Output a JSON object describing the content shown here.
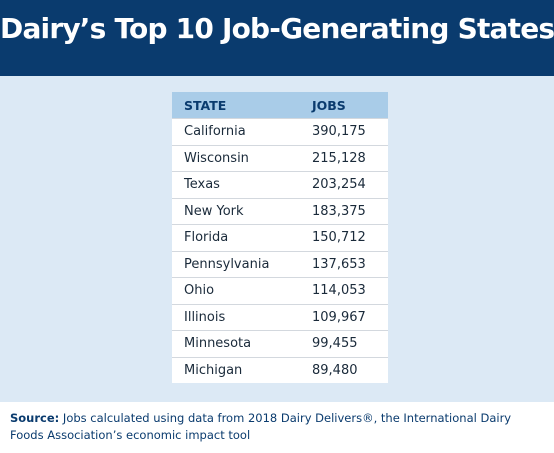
{
  "header": {
    "title": "Dairy’s Top 10 Job-Generating States"
  },
  "table": {
    "columns": [
      "STATE",
      "JOBS"
    ],
    "rows": [
      [
        "California",
        "390,175"
      ],
      [
        "Wisconsin",
        "215,128"
      ],
      [
        "Texas",
        "203,254"
      ],
      [
        "New York",
        "183,375"
      ],
      [
        "Florida",
        "150,712"
      ],
      [
        "Pennsylvania",
        "137,653"
      ],
      [
        "Ohio",
        "114,053"
      ],
      [
        "Illinois",
        "109,967"
      ],
      [
        "Minnesota",
        "99,455"
      ],
      [
        "Michigan",
        "89,480"
      ]
    ]
  },
  "source": {
    "label": "Source:",
    "text": "Jobs calculated using data from 2018 Dairy Delivers®, the International Dairy Foods Association’s economic impact tool"
  }
}
